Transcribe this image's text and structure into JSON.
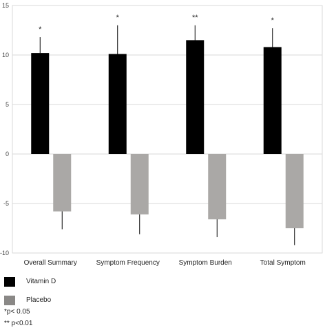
{
  "chart_data": {
    "type": "bar",
    "title": "",
    "xlabel": "",
    "ylabel": "",
    "ylim": [
      -10,
      15
    ],
    "yticks": [
      -10,
      -5,
      0,
      5,
      10,
      15
    ],
    "grid": true,
    "legend_position": "bottom-left",
    "categories": [
      "Overall Summary",
      "Symptom Frequency",
      "Symptom Burden",
      "Total Symptom"
    ],
    "series": [
      {
        "name": "Vitamin D",
        "color": "#000000",
        "values": [
          10.2,
          10.1,
          11.5,
          10.8
        ],
        "error": [
          1.6,
          2.9,
          1.5,
          1.9
        ],
        "error_direction": "up"
      },
      {
        "name": "Placebo",
        "color": "#aaa8a6",
        "values": [
          -5.8,
          -6.1,
          -6.6,
          -7.5
        ],
        "error": [
          1.8,
          2.0,
          1.8,
          1.7
        ],
        "error_direction": "down"
      }
    ],
    "annotations": [
      "*",
      "*",
      "**",
      "*"
    ]
  },
  "notes": [
    "*p< 0.05",
    "** p<0.01"
  ]
}
